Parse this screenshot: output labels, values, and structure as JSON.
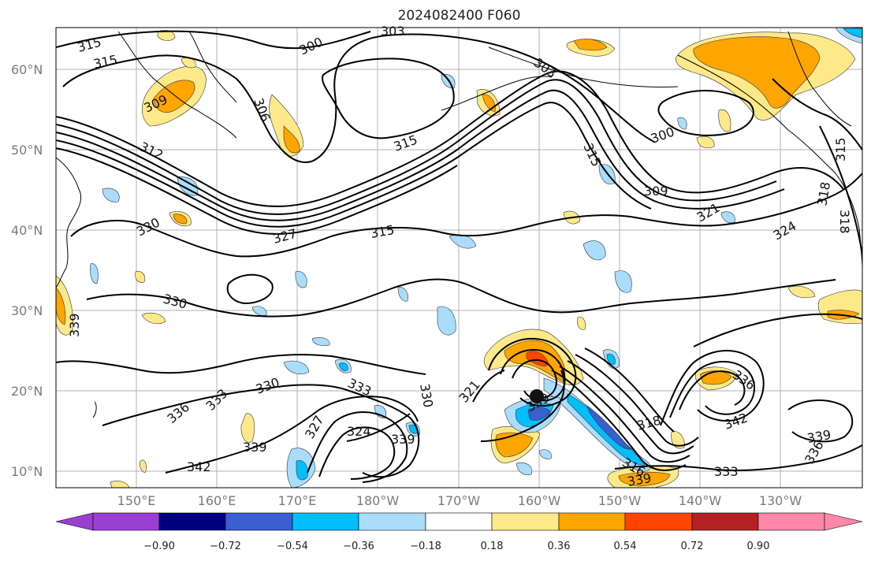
{
  "title": "2024082400 F060",
  "lat_labels": [
    "10°N",
    "20°N",
    "30°N",
    "40°N",
    "50°N",
    "60°N"
  ],
  "lon_labels": [
    "150°E",
    "160°E",
    "170°E",
    "180°W",
    "170°W",
    "160°W",
    "150°W",
    "140°W",
    "130°W"
  ],
  "contour_labels": [
    "315",
    "315",
    "300",
    "303",
    "303",
    "309",
    "306",
    "300",
    "315",
    "312",
    "315",
    "309",
    "330",
    "327",
    "315",
    "321",
    "324",
    "318",
    "318",
    "315",
    "330",
    "339",
    "336",
    "333",
    "330",
    "333",
    "330",
    "321",
    "327",
    "324",
    "339",
    "339",
    "342",
    "339",
    "318",
    "336",
    "342",
    "339",
    "336",
    "333",
    "339",
    "316"
  ],
  "colorbar": {
    "ticks": [
      "−0.90",
      "−0.72",
      "−0.54",
      "−0.36",
      "−0.18",
      "0.18",
      "0.36",
      "0.54",
      "0.72",
      "0.90"
    ],
    "colors": [
      "#9b3fd3",
      "#00007e",
      "#3a5fd0",
      "#00bfff",
      "#aadcfb",
      "#ffffff",
      "#fde98a",
      "#ffa500",
      "#ff4500",
      "#b22222",
      "#ff88a8"
    ]
  },
  "colors": {
    "positive_light": "#fde98a",
    "positive": "#ffa500",
    "positive_strong": "#ff4500",
    "negative_light": "#aadcfb",
    "negative": "#00bfff",
    "negative_strong": "#3a5fd0"
  }
}
